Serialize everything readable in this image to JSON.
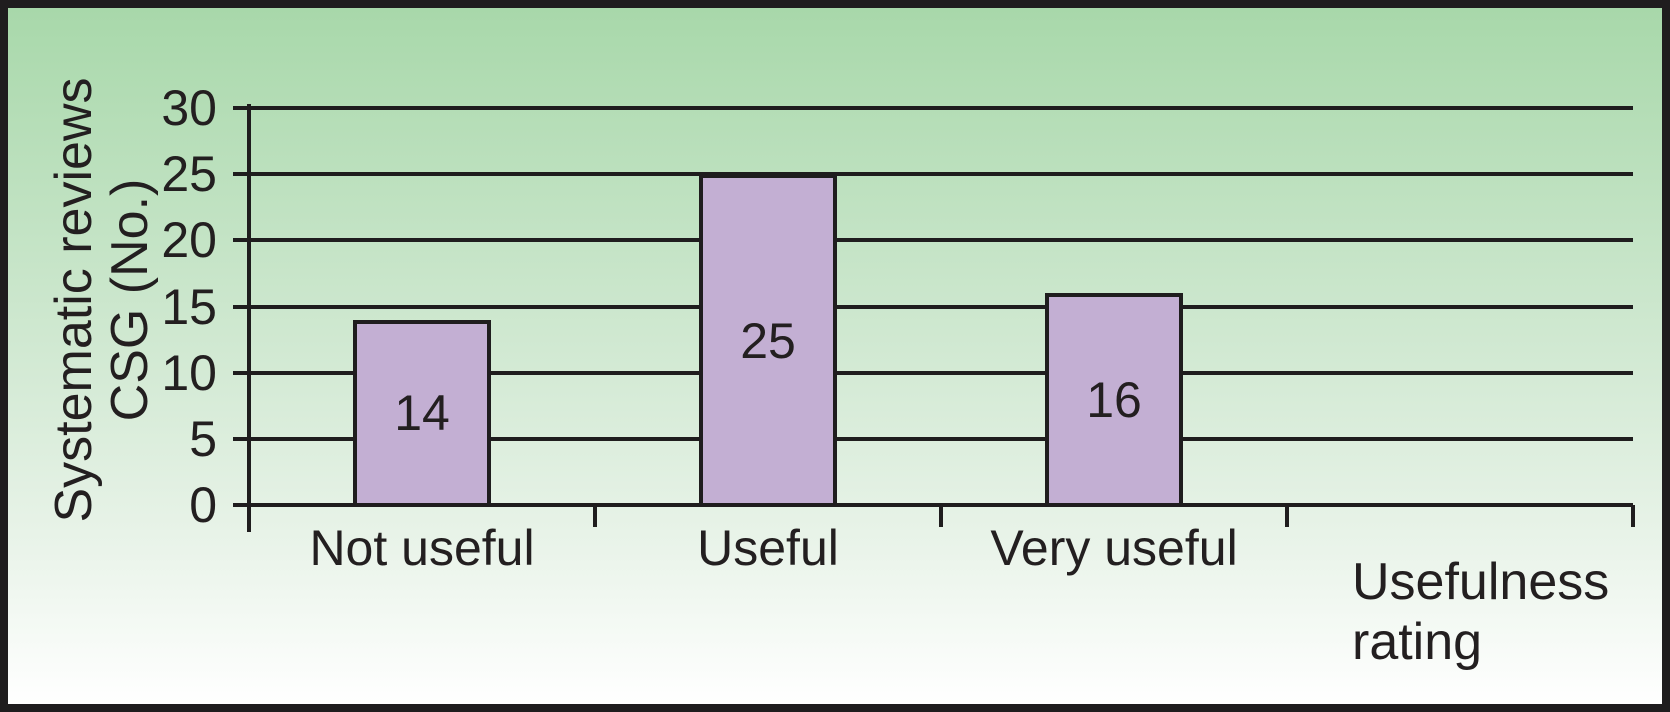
{
  "chart_data": {
    "type": "bar",
    "title": "",
    "categories": [
      "Not useful",
      "Useful",
      "Very useful"
    ],
    "values": [
      14,
      25,
      16
    ],
    "bar_value_labels": [
      "14",
      "25",
      "16"
    ],
    "ylabel": "Systematic reviews CSG (No.)",
    "ylabel_lines": [
      "Systematic reviews",
      "CSG (No.)"
    ],
    "xlabel": "Usefulness rating",
    "xlabel_lines": [
      "Usefulness",
      "rating"
    ],
    "yticks": [
      0,
      5,
      10,
      15,
      20,
      25,
      30
    ],
    "ylim": [
      0,
      30
    ],
    "num_category_slots": 4,
    "grid": "horizontal",
    "legend": "none",
    "colors": {
      "bar_fill": "#c3afd3",
      "bar_border": "#1f1d1e",
      "line": "#1f1d1e",
      "text": "#231f20",
      "bg_top": "#a8d8aa",
      "bg_mid": "#d6ebd7",
      "bg_low": "#eaf4ea",
      "bg_bottom": "#ffffff"
    }
  }
}
